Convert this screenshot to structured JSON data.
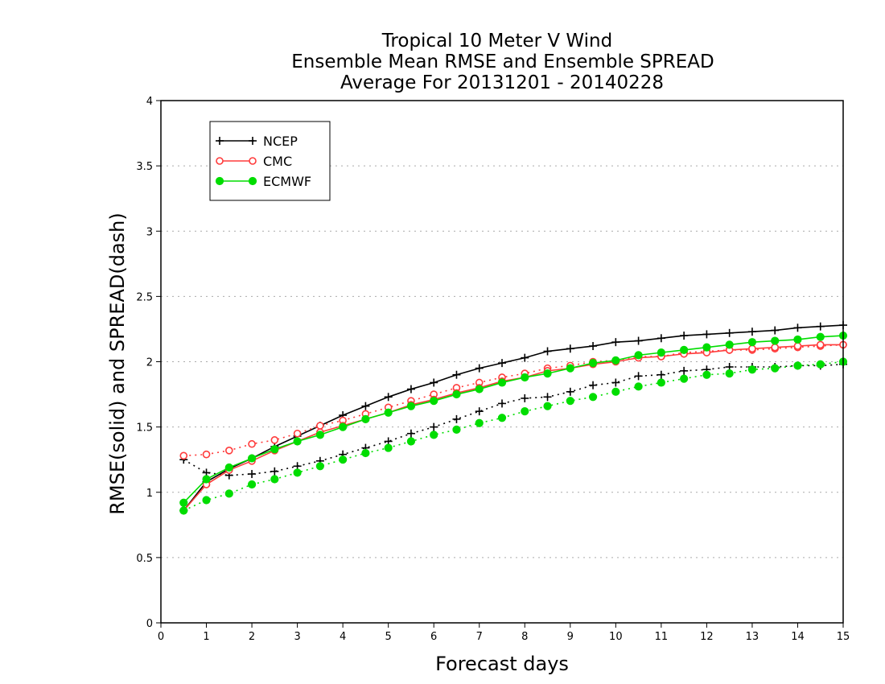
{
  "chart_data": {
    "type": "line",
    "title_lines": [
      "Tropical 10 Meter V Wind",
      "Ensemble Mean RMSE and Ensemble SPREAD",
      "Average For 20131201 - 20140228"
    ],
    "xlabel": "Forecast days",
    "ylabel": "RMSE(solid) and SPREAD(dash)",
    "xlim": [
      0,
      15
    ],
    "ylim": [
      0,
      4
    ],
    "x_ticks": [
      "0",
      "1",
      "2",
      "3",
      "4",
      "5",
      "6",
      "7",
      "8",
      "9",
      "10",
      "11",
      "12",
      "13",
      "14",
      "15"
    ],
    "y_ticks": [
      "0",
      "0.5",
      "1",
      "1.5",
      "2",
      "2.5",
      "3",
      "3.5",
      "4"
    ],
    "grid": "horizontal dotted",
    "legend_position": "top-left",
    "x": [
      0.5,
      1,
      1.5,
      2,
      2.5,
      3,
      3.5,
      4,
      4.5,
      5,
      5.5,
      6,
      6.5,
      7,
      7.5,
      8,
      8.5,
      9,
      9.5,
      10,
      10.5,
      11,
      11.5,
      12,
      12.5,
      13,
      13.5,
      14,
      14.5,
      15
    ],
    "series": [
      {
        "name": "NCEP",
        "color": "#000000",
        "marker": "plus",
        "rmse": [
          0.86,
          1.08,
          1.18,
          1.26,
          1.35,
          1.43,
          1.51,
          1.59,
          1.66,
          1.73,
          1.79,
          1.84,
          1.9,
          1.95,
          1.99,
          2.03,
          2.08,
          2.1,
          2.12,
          2.15,
          2.16,
          2.18,
          2.2,
          2.21,
          2.22,
          2.23,
          2.24,
          2.26,
          2.27,
          2.28
        ],
        "spread": [
          1.25,
          1.15,
          1.13,
          1.14,
          1.16,
          1.2,
          1.24,
          1.29,
          1.34,
          1.39,
          1.45,
          1.5,
          1.56,
          1.62,
          1.68,
          1.72,
          1.73,
          1.77,
          1.82,
          1.84,
          1.89,
          1.9,
          1.93,
          1.94,
          1.96,
          1.96,
          1.96,
          1.97,
          1.97,
          1.98
        ]
      },
      {
        "name": "CMC",
        "color": "#ff3b3b",
        "marker": "open-circle",
        "rmse": [
          0.86,
          1.06,
          1.17,
          1.24,
          1.32,
          1.39,
          1.46,
          1.51,
          1.56,
          1.61,
          1.67,
          1.71,
          1.76,
          1.8,
          1.85,
          1.88,
          1.93,
          1.95,
          1.98,
          2.0,
          2.03,
          2.04,
          2.06,
          2.07,
          2.09,
          2.1,
          2.11,
          2.12,
          2.13,
          2.13
        ],
        "spread": [
          1.28,
          1.29,
          1.32,
          1.37,
          1.4,
          1.45,
          1.51,
          1.55,
          1.6,
          1.65,
          1.7,
          1.75,
          1.8,
          1.84,
          1.88,
          1.91,
          1.95,
          1.97,
          2.0,
          2.01,
          2.04,
          2.04,
          2.07,
          2.08,
          2.09,
          2.09,
          2.1,
          2.11,
          2.12,
          2.13
        ]
      },
      {
        "name": "ECMWF",
        "color": "#00dd00",
        "marker": "filled-circle",
        "rmse": [
          0.92,
          1.1,
          1.19,
          1.26,
          1.33,
          1.39,
          1.44,
          1.5,
          1.56,
          1.61,
          1.66,
          1.7,
          1.75,
          1.79,
          1.84,
          1.88,
          1.91,
          1.95,
          1.99,
          2.01,
          2.05,
          2.07,
          2.09,
          2.11,
          2.13,
          2.15,
          2.16,
          2.17,
          2.19,
          2.2
        ],
        "spread": [
          0.86,
          0.94,
          0.99,
          1.06,
          1.1,
          1.15,
          1.2,
          1.25,
          1.3,
          1.34,
          1.39,
          1.44,
          1.48,
          1.53,
          1.57,
          1.62,
          1.66,
          1.7,
          1.73,
          1.77,
          1.81,
          1.84,
          1.87,
          1.9,
          1.91,
          1.94,
          1.95,
          1.97,
          1.98,
          2.0
        ]
      }
    ]
  }
}
